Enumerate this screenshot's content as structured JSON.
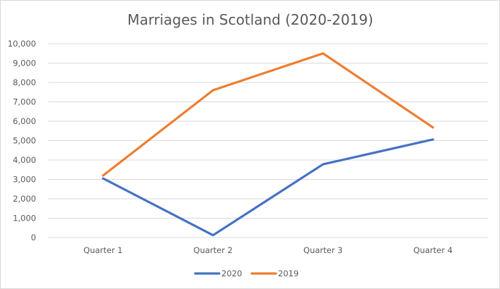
{
  "chart_data": {
    "type": "line",
    "title": "Marriages in Scotland (2020-2019)",
    "xlabel": "",
    "ylabel": "",
    "categories": [
      "Quarter 1",
      "Quarter 2",
      "Quarter 3",
      "Quarter 4"
    ],
    "ylim": [
      0,
      10000
    ],
    "yticks": [
      0,
      1000,
      2000,
      3000,
      4000,
      5000,
      6000,
      7000,
      8000,
      9000,
      10000
    ],
    "ytick_labels": [
      "0",
      "1,000",
      "2,000",
      "3,000",
      "4,000",
      "5,000",
      "6,000",
      "7,000",
      "8,000",
      "9,000",
      "10,000"
    ],
    "grid": true,
    "legend_position": "bottom",
    "series": [
      {
        "name": "2020",
        "color": "#4472c4",
        "values": [
          3050,
          120,
          3780,
          5060
        ]
      },
      {
        "name": "2019",
        "color": "#ed7d31",
        "values": [
          3200,
          7600,
          9500,
          5680
        ]
      }
    ]
  }
}
